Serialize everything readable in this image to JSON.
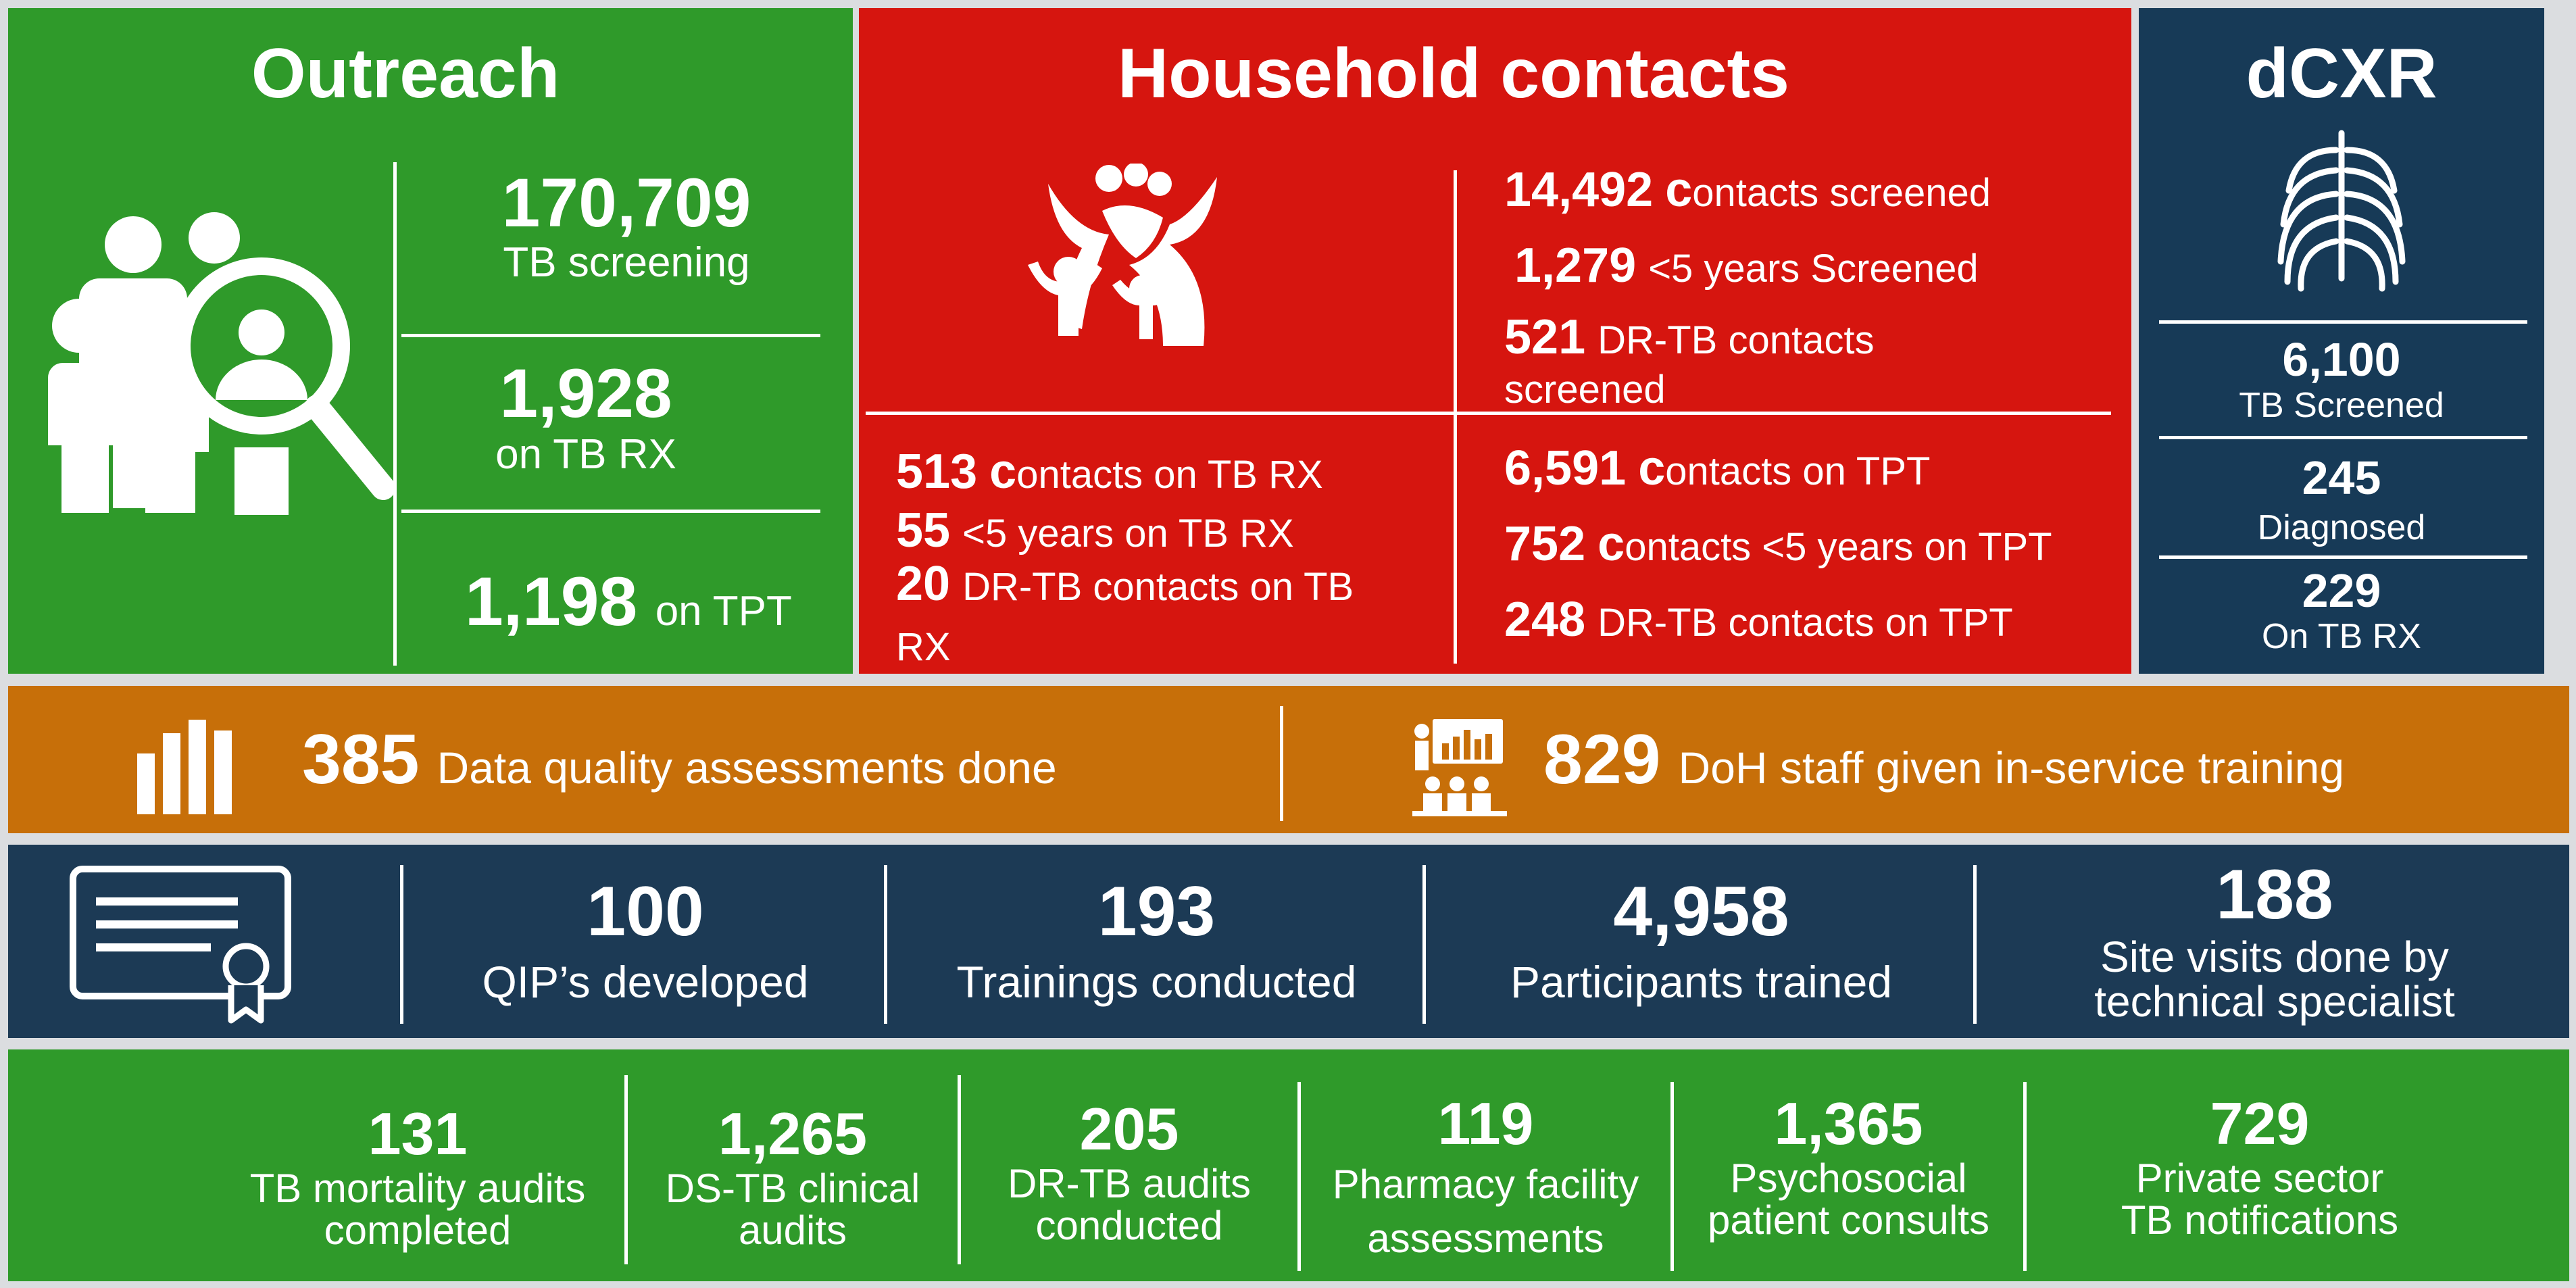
{
  "outreach": {
    "title": "Outreach",
    "screening_value": "170,709",
    "screening_label": "TB screening",
    "rx_value": "1,928",
    "rx_label": "on TB RX",
    "tpt_value": "1,198",
    "tpt_label": "on TPT"
  },
  "household": {
    "title": "Household contacts",
    "screened_value": "14,492",
    "screened_c": "c",
    "screened_label": "ontacts screened",
    "under5_value": "1,279",
    "under5_label": "<5 years Screened",
    "drtb_value": "521",
    "drtb_label_1": "DR-TB contacts",
    "drtb_label_2": "screened",
    "rx_contacts_value": "513",
    "rx_contacts_c": "c",
    "rx_contacts_label": "ontacts on TB RX",
    "rx_under5_value": "55",
    "rx_under5_label": "<5 years on TB RX",
    "rx_drtb_value": "20",
    "rx_drtb_label_1": "DR-TB contacts on TB",
    "rx_drtb_label_2": "RX",
    "tpt_contacts_value": "6,591",
    "tpt_contacts_c": "c",
    "tpt_contacts_label": "ontacts on TPT",
    "tpt_under5_value": "752",
    "tpt_under5_c": "c",
    "tpt_under5_label": "ontacts <5 years on TPT",
    "tpt_drtb_value": "248",
    "tpt_drtb_label": "DR-TB contacts on TPT"
  },
  "dcxr": {
    "title": "dCXR",
    "screened_value": "6,100",
    "screened_label": "TB Screened",
    "diagnosed_value": "245",
    "diagnosed_label": "Diagnosed",
    "rx_value": "229",
    "rx_label": "On TB RX"
  },
  "quality_band": {
    "dqa_value": "385",
    "dqa_label": "Data quality assessments done",
    "training_value": "829",
    "training_label": "DoH staff given in-service training"
  },
  "cert_band": {
    "items": [
      {
        "value": "100",
        "label": "QIP’s developed"
      },
      {
        "value": "193",
        "label": "Trainings conducted"
      },
      {
        "value": "4,958",
        "label": "Participants trained"
      },
      {
        "value": "188",
        "label_1": "Site visits done by",
        "label_2": "technical specialist"
      }
    ]
  },
  "audit_band": {
    "items": [
      {
        "value": "131",
        "label_1": "TB mortality audits",
        "label_2": "completed"
      },
      {
        "value": "1,265",
        "label_1": "DS-TB clinical",
        "label_2": "audits"
      },
      {
        "value": "205",
        "label_1": "DR-TB audits",
        "label_2": "conducted"
      },
      {
        "value": "119",
        "label_1": "Pharmacy facility",
        "label_2": "assessments"
      },
      {
        "value": "1,365",
        "label_1": "Psychosocial",
        "label_2": "patient consults"
      },
      {
        "value": "729",
        "label_1": "Private sector",
        "label_2": "TB notifications"
      }
    ]
  },
  "colors": {
    "green": "#2f9a2a",
    "red": "#d6150f",
    "navy": "#173a57",
    "orange": "#c76f09"
  },
  "icons": {
    "outreach": "people-magnifier-icon",
    "household": "family-icon",
    "dcxr": "ribcage-icon",
    "dqa": "bar-chart-icon",
    "training": "presentation-icon",
    "certificate": "certificate-icon"
  }
}
